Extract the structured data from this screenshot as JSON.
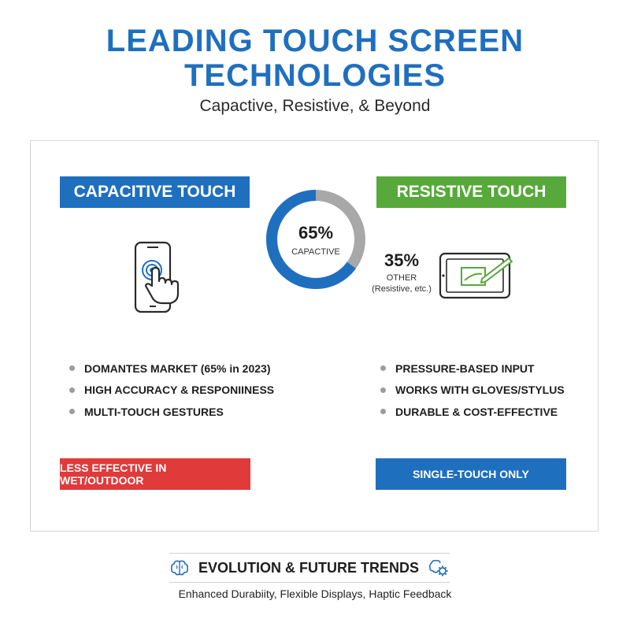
{
  "header": {
    "title_line1": "LEADING TOUCH SCREEN",
    "title_line2": "TECHNOLOGIES",
    "subtitle": "Capactive, Resistive, & Beyond"
  },
  "capacitive": {
    "banner": "CAPACITIVE TOUCH",
    "icon": "phone-touch-icon",
    "bullets": [
      "DOMANTES MARKET (65% in 2023)",
      "HIGH ACCURACY & RESPONIINESS",
      "MULTI-TOUCH GESTURES"
    ],
    "limitation": "LESS EFFECTIVE IN WET/OUTDOOR"
  },
  "resistive": {
    "banner": "RESISTIVE TOUCH",
    "icon": "tablet-stylus-icon",
    "bullets": [
      "PRESSURE-BASED INPUT",
      "WORKS WITH GLOVES/STYLUS",
      "DURABLE & COST-EFFECTIVE"
    ],
    "limitation": "SINGLE-TOUCH ONLY"
  },
  "share": {
    "capacitive_pct": "65%",
    "capacitive_label": "CAPACTIVE",
    "other_pct": "35%",
    "other_label1": "OTHER",
    "other_label2": "(Resistive, etc.)",
    "capacitive_fraction": 0.65
  },
  "footer": {
    "title": "EVOLUTION & FUTURE TRENDS",
    "subtitle": "Enhanced Durabiity, Flexible Displays, Haptic Feedback",
    "left_icon": "brain-icon",
    "right_icon": "gear-brain-icon"
  },
  "colors": {
    "blue": "#1f6fbf",
    "green": "#56a93a",
    "red": "#e03a3a",
    "gray": "#a8a8a8"
  }
}
